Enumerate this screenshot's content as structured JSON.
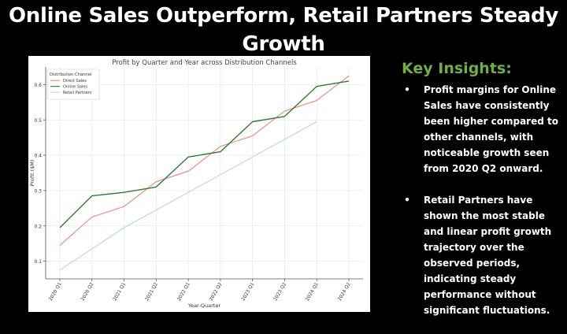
{
  "slide": {
    "title": "Online Sales Outperform, Retail Partners Steady Growth"
  },
  "insights": {
    "title": "Key Insights:",
    "bullets": [
      "Profit margins for Online Sales have consistently been higher compared to other channels, with noticeable growth seen from 2020 Q2 onward.",
      "Retail Partners have shown the most stable and linear profit growth trajectory over the observed periods, indicating steady performance without significant fluctuations."
    ]
  },
  "chart_data": {
    "type": "line",
    "title": "Profit by Quarter and Year across Distribution Channels",
    "xlabel": "Year-Quarter",
    "ylabel": "Profit ($M)",
    "categories": [
      "2020 Q1",
      "2020 Q2",
      "2021 Q1",
      "2021 Q2",
      "2022 Q1",
      "2022 Q2",
      "2023 Q1",
      "2023 Q2",
      "2024 Q1",
      "2024 Q2"
    ],
    "ylim": [
      0.05,
      0.65
    ],
    "yticks": [
      0.1,
      0.2,
      0.3,
      0.4,
      0.5,
      0.6
    ],
    "grid": true,
    "legend": {
      "title": "Distribution Channel",
      "placement": "top-left"
    },
    "series": [
      {
        "name": "Direct Sales",
        "color": "#f08080",
        "values": [
          0.145,
          0.225,
          0.255,
          0.325,
          0.355,
          0.425,
          0.455,
          0.525,
          0.555,
          0.625
        ]
      },
      {
        "name": "Online Sales",
        "color": "#2e7d32",
        "values": [
          0.195,
          0.285,
          0.295,
          0.31,
          0.395,
          0.41,
          0.495,
          0.51,
          0.595,
          0.61
        ]
      },
      {
        "name": "Retail Partners",
        "color": "#add8e6",
        "values": [
          0.075,
          0.135,
          0.195,
          0.245,
          0.295,
          0.345,
          0.395,
          0.445,
          0.495,
          null
        ]
      }
    ]
  }
}
